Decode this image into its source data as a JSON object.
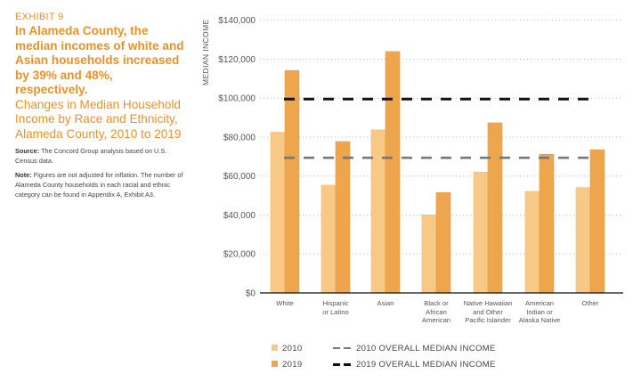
{
  "exhibit_label": "EXHIBIT 9",
  "headline": "In Alameda County, the median incomes of white and Asian households increased by 39% and 48%, respectively.",
  "subtitle": "Changes in Median Household Income by Race and Ethnicity, Alameda County, 2010 to 2019",
  "source_label": "Source:",
  "source_text": "The Concord Group analysis based on U.S. Census data.",
  "note_label": "Note:",
  "note_text": "Figures are not adjusted for inflation. The number of Alameda County households in each racial and ethnic category can be found in Appendix A, Exhibit A3.",
  "colors": {
    "s2010": "#f7c987",
    "s2019": "#eda54e",
    "ref2010": "#777777",
    "ref2019": "#111111",
    "title": "#e8922a"
  },
  "chart_data": {
    "type": "bar",
    "title": "Changes in Median Household Income by Race and Ethnicity, Alameda County, 2010 to 2019",
    "xlabel": "",
    "ylabel": "MEDIAN INCOME",
    "ylim": [
      0,
      140000
    ],
    "yticks": [
      0,
      20000,
      40000,
      60000,
      80000,
      100000,
      120000,
      140000
    ],
    "ytick_labels": [
      "$0",
      "$20,000",
      "$40,000",
      "$60,000",
      "$80,000",
      "$100,000",
      "$120,000",
      "$140,000"
    ],
    "grid": true,
    "categories": [
      "White",
      "Hispanic\nor Latino",
      "Asian",
      "Black or\nAfrican\nAmerican",
      "Native Hawaiian\nand Other\nPacific Islander",
      "American\nIndian or\nAlaska Native",
      "Other"
    ],
    "series": [
      {
        "name": "2010",
        "values": [
          82500,
          55300,
          83700,
          40100,
          62000,
          52100,
          54100
        ]
      },
      {
        "name": "2019",
        "values": [
          114200,
          77700,
          123900,
          51500,
          87300,
          71200,
          73500
        ]
      }
    ],
    "reference_lines": [
      {
        "name": "2010 OVERALL MEDIAN INCOME",
        "value": 69400
      },
      {
        "name": "2019 OVERALL MEDIAN INCOME",
        "value": 99500
      }
    ],
    "legend_placement": "bottom"
  }
}
